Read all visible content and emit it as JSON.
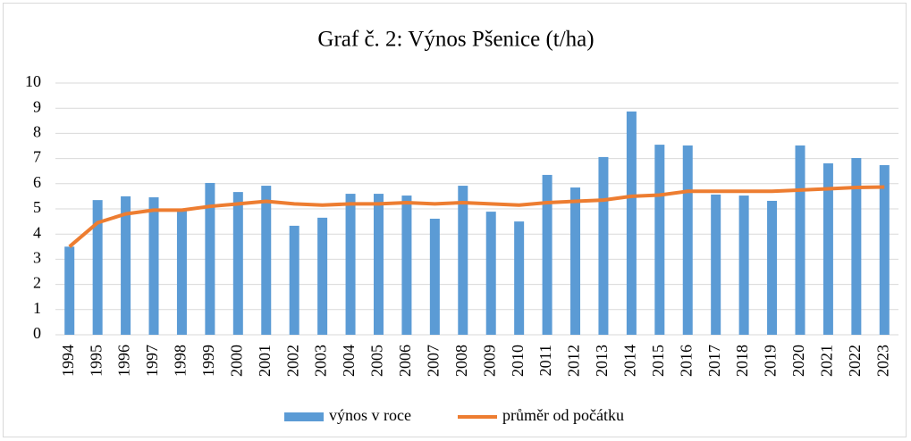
{
  "chart_data": {
    "type": "bar-line",
    "title": "Graf č. 2: Výnos Pšenice  (t/ha)",
    "categories": [
      "1994",
      "1995",
      "1996",
      "1997",
      "1998",
      "1999",
      "2000",
      "2001",
      "2002",
      "2003",
      "2004",
      "2005",
      "2006",
      "2007",
      "2008",
      "2009",
      "2010",
      "2011",
      "2012",
      "2013",
      "2014",
      "2015",
      "2016",
      "2017",
      "2018",
      "2019",
      "2020",
      "2021",
      "2022",
      "2023"
    ],
    "series": [
      {
        "name": "výnos v roce",
        "type": "bar",
        "color": "#5b9bd5",
        "values": [
          3.5,
          5.35,
          5.5,
          5.46,
          4.93,
          6.03,
          5.67,
          5.92,
          4.33,
          4.65,
          5.6,
          5.6,
          5.53,
          4.61,
          5.92,
          4.89,
          4.5,
          6.35,
          5.85,
          7.06,
          8.87,
          7.55,
          7.52,
          5.57,
          5.53,
          5.32,
          7.52,
          6.81,
          7.02,
          6.74
        ]
      },
      {
        "name": "průměr od počátku",
        "type": "line",
        "color": "#ed7d31",
        "values": [
          3.5,
          4.45,
          4.8,
          4.95,
          4.95,
          5.1,
          5.2,
          5.3,
          5.2,
          5.15,
          5.2,
          5.2,
          5.25,
          5.2,
          5.25,
          5.2,
          5.15,
          5.25,
          5.3,
          5.35,
          5.5,
          5.55,
          5.7,
          5.7,
          5.7,
          5.7,
          5.75,
          5.8,
          5.85,
          5.87
        ]
      }
    ],
    "ylim": [
      0,
      10
    ],
    "yticks": [
      0,
      1,
      2,
      3,
      4,
      5,
      6,
      7,
      8,
      9,
      10
    ],
    "grid": true,
    "legend": "bottom"
  }
}
